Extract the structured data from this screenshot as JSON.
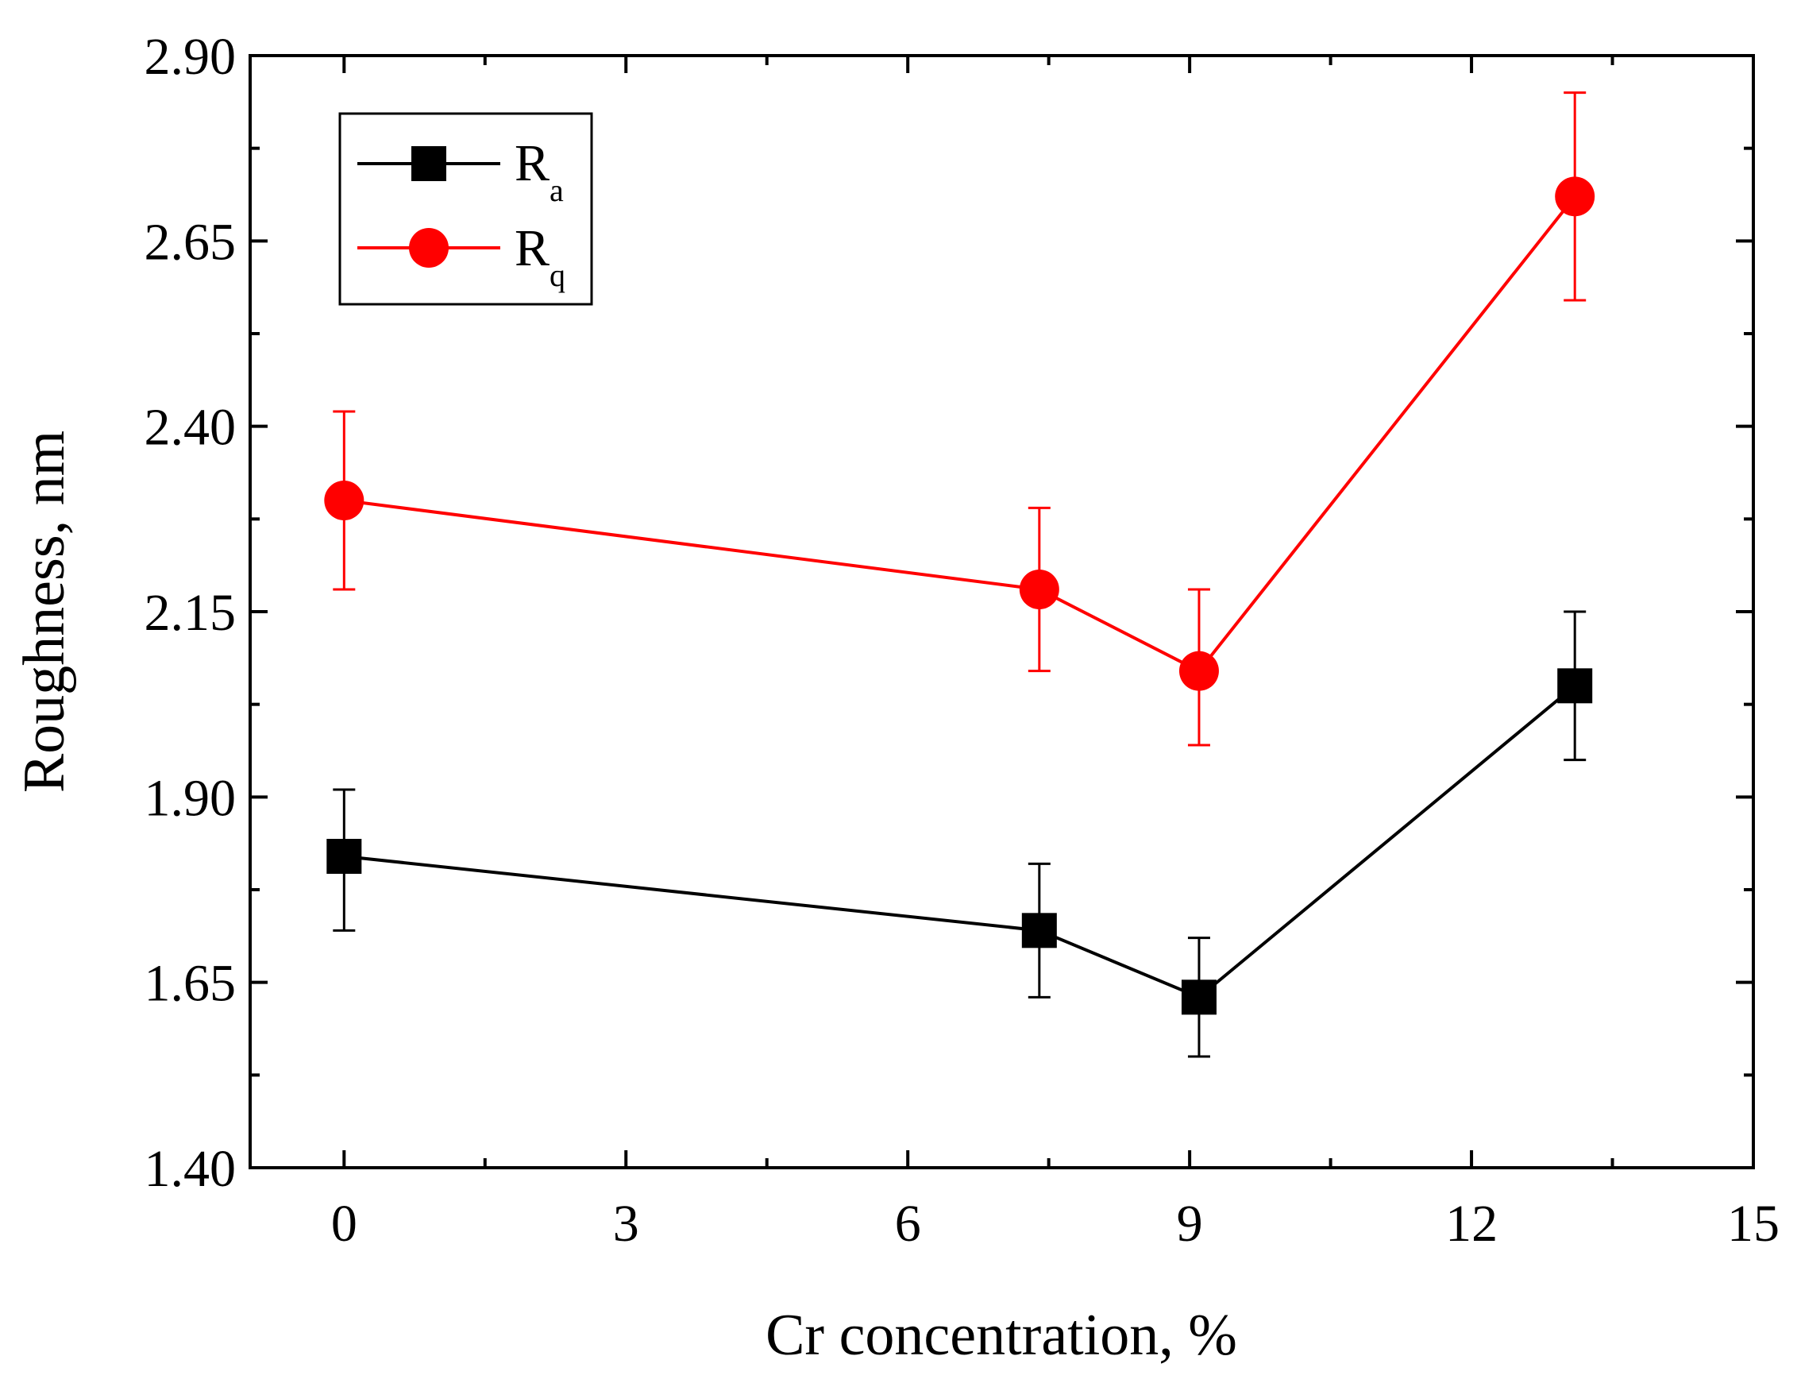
{
  "chart_data": {
    "type": "line",
    "title": "",
    "xlabel": "Cr concentration, %",
    "ylabel": "Roughness, nm",
    "xlim": [
      -1,
      15
    ],
    "ylim": [
      1.4,
      2.9
    ],
    "xticks": [
      0,
      3,
      6,
      9,
      12,
      15
    ],
    "xtick_labels": [
      "0",
      "3",
      "6",
      "9",
      "12",
      "15"
    ],
    "yticks": [
      1.4,
      1.65,
      1.9,
      2.15,
      2.4,
      2.65,
      2.9
    ],
    "ytick_labels": [
      "1.40",
      "1.65",
      "1.90",
      "2.15",
      "2.40",
      "2.65",
      "2.90"
    ],
    "grid": false,
    "legend_position": "top-left",
    "series": [
      {
        "name": "R",
        "subscript": "a",
        "color": "#000000",
        "marker": "square",
        "x": [
          0,
          7.4,
          9.1,
          13.1
        ],
        "y": [
          1.82,
          1.72,
          1.63,
          2.05
        ],
        "err_low": [
          1.72,
          1.63,
          1.55,
          1.95
        ],
        "err_high": [
          1.91,
          1.81,
          1.71,
          2.15
        ]
      },
      {
        "name": "R",
        "subscript": "q",
        "color": "#ff0000",
        "marker": "circle",
        "x": [
          0,
          7.4,
          9.1,
          13.1
        ],
        "y": [
          2.3,
          2.18,
          2.07,
          2.71
        ],
        "err_low": [
          2.18,
          2.07,
          1.97,
          2.57
        ],
        "err_high": [
          2.42,
          2.29,
          2.18,
          2.85
        ]
      }
    ]
  }
}
